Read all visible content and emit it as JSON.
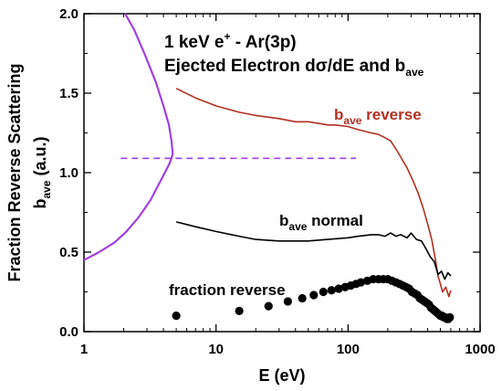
{
  "chart_data": {
    "type": "line",
    "title_line1": {
      "pre": "1 keV e",
      "sup": "+",
      "post": " - Ar(3p)"
    },
    "title_line2": {
      "pre": "Ejected Electron dσ/dE and b",
      "sub": "ave"
    },
    "xlabel": "E (eV)",
    "ylabel": {
      "line1": "Fraction Reverse Scattering",
      "line2_pre": "b",
      "line2_sub": "ave",
      "line2_post": " (a.u.)"
    },
    "xscale": "log",
    "xlim": [
      1,
      1000
    ],
    "ylim": [
      0,
      2.0
    ],
    "x_tick_labels": [
      "1",
      "10",
      "100",
      "1000"
    ],
    "y_tick_labels": [
      "0.0",
      "0.5",
      "1.0",
      "1.5",
      "2.0"
    ],
    "grid": false,
    "colors": {
      "reverse": "#b03020",
      "normal": "#000000",
      "fraction": "#000000",
      "profile": "#a040e0",
      "dashed": "#a040e0"
    },
    "annotations": {
      "reverse": {
        "pre": "b",
        "sub": "ave",
        "post": " reverse"
      },
      "normal": {
        "pre": "b",
        "sub": "ave",
        "post": " normal"
      },
      "fraction": {
        "text": "fraction reverse"
      }
    },
    "series": [
      {
        "key": "reverse",
        "style": "line",
        "x": [
          5,
          7,
          10,
          15,
          20,
          30,
          40,
          50,
          60,
          70,
          80,
          100,
          120,
          150,
          170,
          190,
          210,
          230,
          250,
          280,
          310,
          340,
          370,
          400,
          430,
          460,
          480,
          500,
          520,
          550,
          580,
          600
        ],
        "y": [
          1.53,
          1.47,
          1.42,
          1.38,
          1.36,
          1.34,
          1.32,
          1.32,
          1.31,
          1.3,
          1.3,
          1.29,
          1.27,
          1.25,
          1.24,
          1.22,
          1.2,
          1.15,
          1.1,
          1.03,
          0.95,
          0.87,
          0.78,
          0.68,
          0.58,
          0.45,
          0.35,
          0.3,
          0.25,
          0.28,
          0.22,
          0.26
        ]
      },
      {
        "key": "normal",
        "style": "line",
        "x": [
          5,
          7,
          10,
          15,
          20,
          30,
          40,
          50,
          70,
          100,
          120,
          150,
          170,
          190,
          210,
          230,
          250,
          280,
          300,
          330,
          360,
          390,
          420,
          450,
          480,
          510,
          540,
          570,
          600
        ],
        "y": [
          0.69,
          0.66,
          0.63,
          0.6,
          0.58,
          0.57,
          0.57,
          0.57,
          0.58,
          0.59,
          0.6,
          0.61,
          0.61,
          0.6,
          0.62,
          0.6,
          0.61,
          0.59,
          0.62,
          0.58,
          0.57,
          0.52,
          0.47,
          0.44,
          0.36,
          0.38,
          0.33,
          0.37,
          0.35
        ]
      },
      {
        "key": "fraction",
        "style": "scatter",
        "x": [
          5,
          15,
          25,
          35,
          45,
          55,
          65,
          75,
          85,
          95,
          105,
          115,
          125,
          140,
          155,
          170,
          185,
          200,
          215,
          230,
          245,
          260,
          275,
          290,
          305,
          320,
          335,
          350,
          365,
          380,
          395,
          410,
          425,
          440,
          455,
          470,
          485,
          500,
          515,
          530,
          545,
          560,
          575,
          590
        ],
        "y": [
          0.1,
          0.13,
          0.16,
          0.19,
          0.21,
          0.23,
          0.25,
          0.26,
          0.27,
          0.28,
          0.29,
          0.3,
          0.31,
          0.32,
          0.33,
          0.33,
          0.33,
          0.33,
          0.32,
          0.31,
          0.3,
          0.29,
          0.28,
          0.27,
          0.25,
          0.24,
          0.23,
          0.21,
          0.2,
          0.19,
          0.18,
          0.17,
          0.15,
          0.14,
          0.13,
          0.12,
          0.11,
          0.1,
          0.1,
          0.09,
          0.09,
          0.08,
          0.08,
          0.09
        ]
      },
      {
        "key": "profile",
        "style": "line",
        "x": [
          1.0,
          1.3,
          1.7,
          2.1,
          2.6,
          3.2,
          3.7,
          4.1,
          4.4,
          4.6,
          4.7,
          4.6,
          4.4,
          4.0,
          3.5,
          2.9,
          2.4,
          2.05
        ],
        "y": [
          0.45,
          0.5,
          0.56,
          0.63,
          0.72,
          0.83,
          0.93,
          1.0,
          1.05,
          1.09,
          1.12,
          1.2,
          1.3,
          1.42,
          1.57,
          1.74,
          1.9,
          2.0
        ]
      },
      {
        "key": "dashed",
        "style": "dashed",
        "x": [
          1.9,
          115
        ],
        "y": [
          1.09,
          1.09
        ]
      }
    ]
  }
}
